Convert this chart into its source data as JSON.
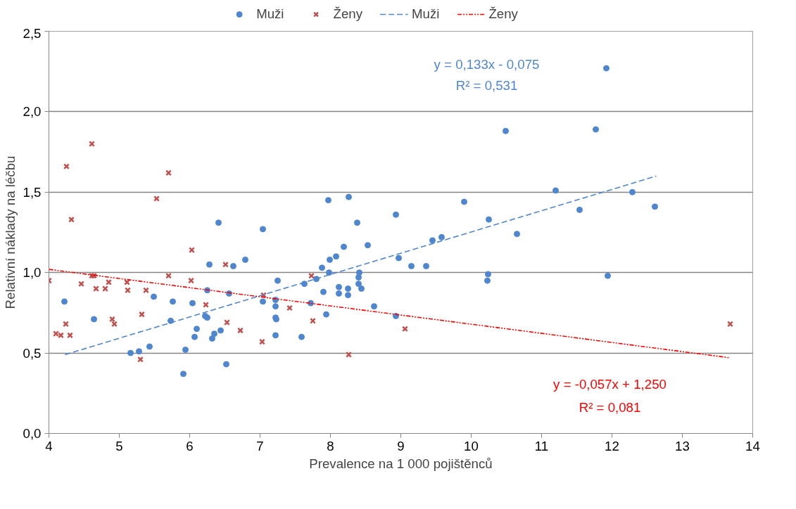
{
  "chart_data": {
    "type": "scatter",
    "xlabel": "Prevalence na 1 000 pojištěnců",
    "ylabel": "Relativní náklady na léčbu",
    "xlim": [
      4,
      14
    ],
    "xticks": [
      4,
      5,
      6,
      7,
      8,
      9,
      10,
      11,
      12,
      13,
      14
    ],
    "ylim": [
      0,
      2.5
    ],
    "yticks": [
      {
        "value": 0,
        "label": "0,0"
      },
      {
        "value": 0.5,
        "label": "0,5"
      },
      {
        "value": 1,
        "label": "1,0"
      },
      {
        "value": 1.5,
        "label": "1,5"
      },
      {
        "value": 2,
        "label": "2,0"
      },
      {
        "value": 2.5,
        "label": "2,5"
      }
    ],
    "grid": "y",
    "legend": "top",
    "series": [
      {
        "name": "Muži",
        "marker": "circle",
        "color": "#4f86d0",
        "x": [
          4.22,
          4.64,
          6.41,
          7.04,
          6.28,
          6.62,
          6.79,
          7.25,
          7.63,
          7.72,
          5.49,
          5.76,
          6.04,
          6.25,
          6.56,
          7.04,
          7.22,
          7.22,
          5.73,
          6.22,
          6.25,
          7.22,
          7.23,
          6.1,
          6.07,
          6.35,
          6.32,
          6.44,
          7.22,
          7.59,
          5.43,
          5.16,
          5.28,
          5.94,
          6.52,
          5.91,
          7.97,
          8.26,
          9.9,
          8.93,
          8.38,
          10.25,
          10.65,
          8.19,
          8.53,
          9.45,
          9.58,
          8.08,
          7.99,
          7.88,
          8.97,
          9.15,
          9.36,
          7.98,
          8.41,
          8.4,
          8.4,
          8.44,
          7.8,
          8.12,
          8.25,
          8.12,
          8.25,
          7.9,
          10.24,
          10.23,
          7.94,
          8.62,
          8.93,
          11.92,
          11.77,
          10.49,
          12.29,
          12.61,
          11.54,
          11.2,
          11.94
        ],
        "values": [
          0.82,
          0.71,
          1.31,
          1.27,
          1.05,
          1.04,
          1.08,
          0.95,
          0.93,
          0.81,
          0.85,
          0.82,
          0.81,
          0.89,
          0.87,
          0.82,
          0.83,
          0.79,
          0.7,
          0.73,
          0.72,
          0.72,
          0.71,
          0.65,
          0.6,
          0.62,
          0.59,
          0.64,
          0.61,
          0.6,
          0.54,
          0.5,
          0.51,
          0.52,
          0.43,
          0.37,
          1.45,
          1.47,
          1.44,
          1.36,
          1.31,
          1.33,
          1.24,
          1.16,
          1.17,
          1.2,
          1.22,
          1.1,
          1.08,
          1.03,
          1.09,
          1.04,
          1.04,
          1.0,
          1.0,
          0.97,
          0.93,
          0.9,
          0.96,
          0.91,
          0.9,
          0.87,
          0.86,
          0.88,
          0.99,
          0.95,
          0.74,
          0.79,
          0.73,
          2.27,
          1.89,
          1.88,
          1.5,
          1.41,
          1.39,
          1.51,
          0.98
        ]
      },
      {
        "name": "Ženy",
        "marker": "cross",
        "color": "#c0504d",
        "x": [
          4.61,
          4.25,
          5.7,
          5.53,
          4.32,
          6.03,
          6.51,
          4.61,
          4.64,
          5.7,
          6.02,
          4.0,
          4.46,
          4.67,
          4.8,
          4.85,
          5.11,
          5.12,
          5.38,
          6.23,
          7.05,
          7.42,
          4.24,
          4.9,
          4.93,
          5.32,
          4.1,
          4.17,
          4.3,
          6.53,
          6.72,
          7.03,
          5.3,
          7.73,
          7.75,
          8.26,
          9.06,
          13.68
        ],
        "values": [
          1.8,
          1.66,
          1.62,
          1.46,
          1.33,
          1.14,
          1.05,
          0.98,
          0.98,
          0.98,
          0.95,
          0.95,
          0.93,
          0.9,
          0.9,
          0.94,
          0.94,
          0.89,
          0.89,
          0.8,
          0.86,
          0.78,
          0.68,
          0.71,
          0.68,
          0.74,
          0.62,
          0.61,
          0.61,
          0.69,
          0.64,
          0.57,
          0.46,
          0.98,
          0.7,
          0.49,
          0.65,
          0.68
        ]
      },
      {
        "name": "Muži",
        "type": "line",
        "line_style": "dashed",
        "color": "#4f86d0",
        "x": [
          4.23,
          12.63
        ],
        "values": [
          0.49,
          1.6
        ]
      },
      {
        "name": "Ženy",
        "type": "line",
        "line_style": "dashdot",
        "color": "#ff0000",
        "x": [
          4.0,
          13.68
        ],
        "values": [
          1.02,
          0.47
        ]
      }
    ],
    "annotations": [
      "y = 0,133x - 0,075",
      "R² = 0,531",
      "y = -0,057x + 1,250",
      "R² = 0,081"
    ]
  }
}
